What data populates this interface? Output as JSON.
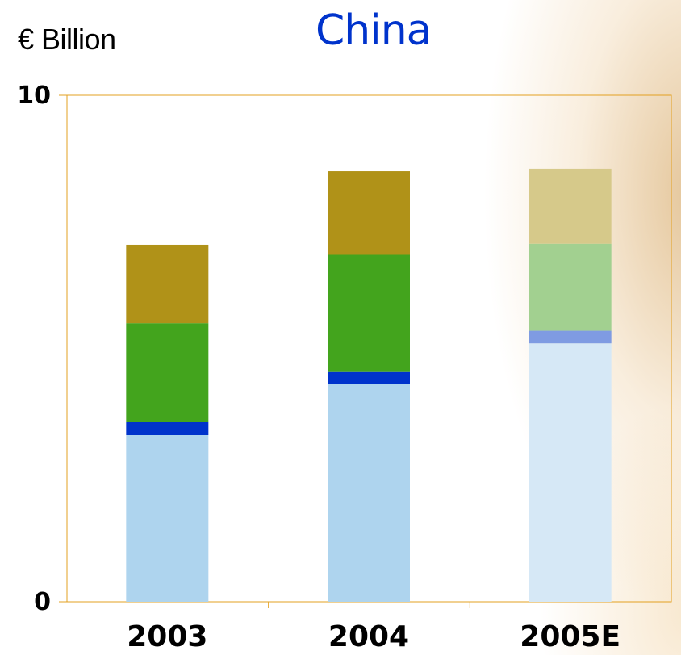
{
  "header": {
    "unit_label": "€ Billion",
    "title": "China"
  },
  "chart_data": {
    "type": "bar",
    "stacked": true,
    "title": "China",
    "ylabel": "€ Billion",
    "xlabel": "",
    "ylim": [
      0,
      10
    ],
    "y_tick_labels": [
      "0",
      "10"
    ],
    "categories": [
      "2003",
      "2004",
      "2005E"
    ],
    "grid": false,
    "legend": "none",
    "series": [
      {
        "values": [
          3.3,
          4.3,
          5.1
        ],
        "colors": [
          "#aed4ee",
          "#aed4ee",
          "#d6e8f6"
        ]
      },
      {
        "values": [
          0.25,
          0.25,
          0.25
        ],
        "colors": [
          "#0033cc",
          "#0033cc",
          "#7f9be2"
        ]
      },
      {
        "values": [
          1.95,
          2.3,
          1.72
        ],
        "colors": [
          "#43a41d",
          "#43a41d",
          "#a2d090"
        ]
      },
      {
        "values": [
          1.55,
          1.65,
          1.48
        ],
        "colors": [
          "#b09218",
          "#b09218",
          "#d6c98a"
        ]
      }
    ],
    "axis_color": "#e3a020"
  }
}
